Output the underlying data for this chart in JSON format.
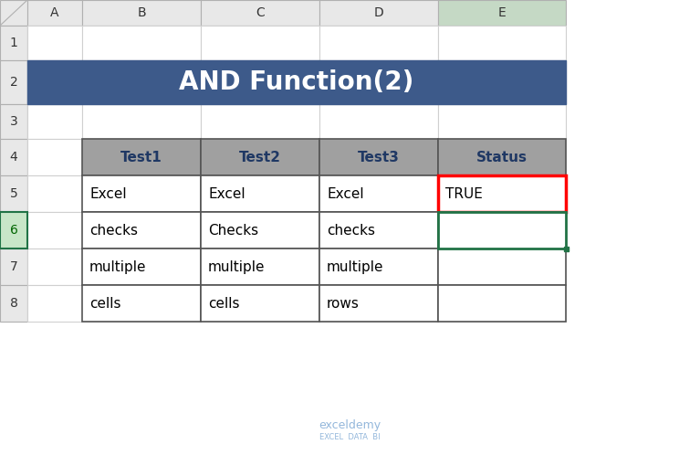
{
  "title": "AND Function(2)",
  "title_bg": "#3D5A8A",
  "title_fg": "#FFFFFF",
  "header_bg": "#A0A0A0",
  "header_fg": "#1F3864",
  "cell_bg": "#FFFFFF",
  "col_headers": [
    "A",
    "B",
    "C",
    "D",
    "E"
  ],
  "row_headers": [
    "1",
    "2",
    "3",
    "4",
    "5",
    "6",
    "7",
    "8"
  ],
  "table_headers": [
    "Test1",
    "Test2",
    "Test3",
    "Status"
  ],
  "table_data": [
    [
      "Excel",
      "Excel",
      "Excel",
      "TRUE"
    ],
    [
      "checks",
      "Checks",
      "checks",
      ""
    ],
    [
      "multiple",
      "multiple",
      "multiple",
      ""
    ],
    [
      "cells",
      "cells",
      "rows",
      ""
    ]
  ],
  "highlight_cell_row": 0,
  "highlight_cell_col": 3,
  "highlight_color": "#FF0000",
  "green_border_color": "#217346",
  "outer_bg": "#FFFFFF",
  "col_header_bg": "#E8E8E8",
  "row_header_bg": "#E8E8E8",
  "selected_col_header_bg": "#C5D9C5",
  "watermark_text": "exceldemy",
  "watermark_sub": "EXCEL  DATA  BI"
}
